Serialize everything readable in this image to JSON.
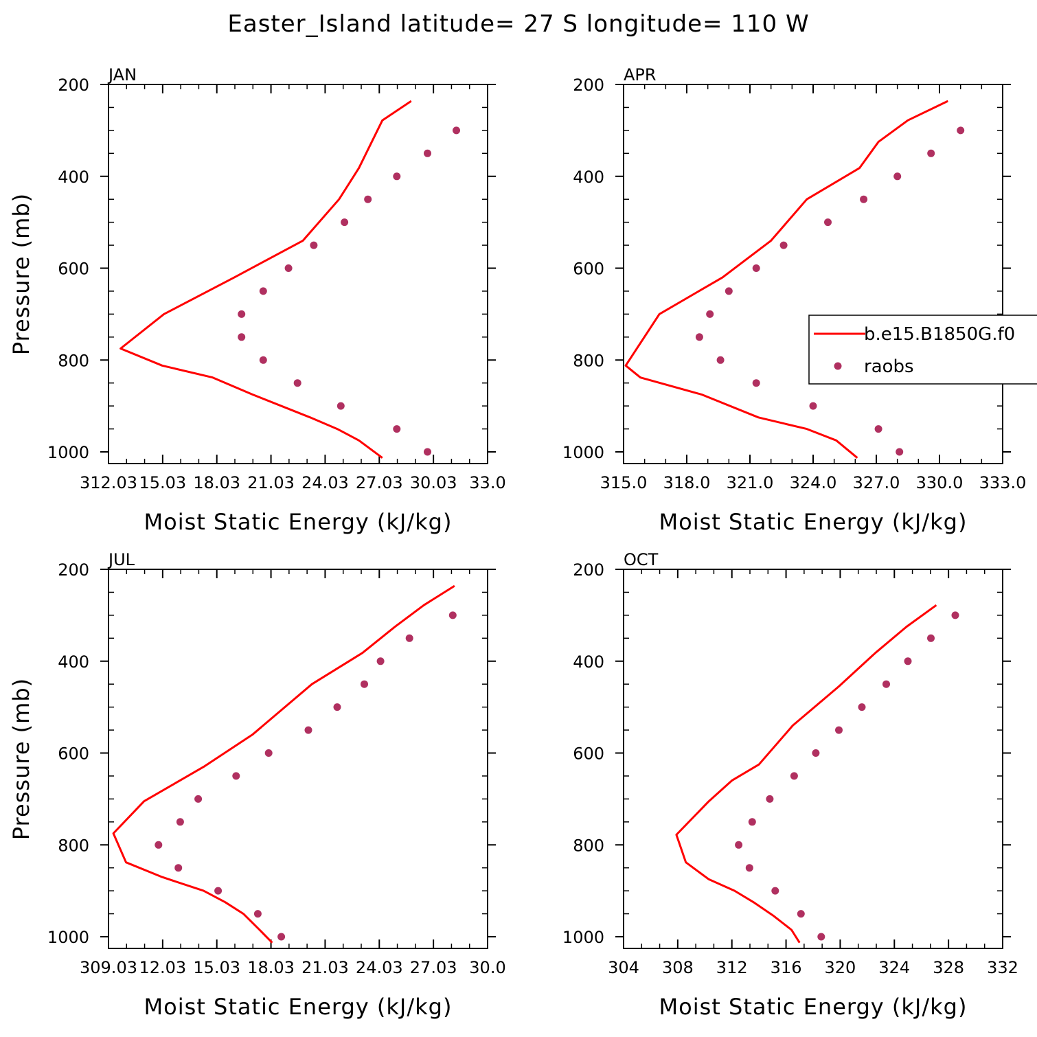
{
  "title": "Easter_Island  latitude= 27 S longitude= 110 W",
  "colors": {
    "model": "#ff0000",
    "obs": "#b03060"
  },
  "legend": {
    "model_label": "b.e15.B1850G.f0",
    "obs_label": "raobs"
  },
  "chart_data": [
    {
      "type": "line",
      "panel": "JAN",
      "xlabel": "Moist Static Energy (kJ/kg)",
      "ylabel": "Pressure (mb)",
      "xlim": [
        312.03,
        333.03
      ],
      "ylim": [
        1000,
        200
      ],
      "xticks": [
        312.03,
        315.03,
        318.03,
        321.03,
        324.03,
        327.03,
        330.03,
        333.03
      ],
      "xtick_labels": [
        "312.03",
        "15.03",
        "18.03",
        "21.03",
        "24.03",
        "27.03",
        "30.03",
        "33.0"
      ],
      "yticks": [
        200,
        400,
        600,
        800,
        1000
      ],
      "series": [
        {
          "name": "b.e15.B1850G.f0",
          "kind": "line",
          "x": [
            327.2,
            325.9,
            324.7,
            323.2,
            320.0,
            317.8,
            315.0,
            312.7,
            315.1,
            319.0,
            322.8,
            324.8,
            325.9,
            327.2,
            328.8
          ],
          "y": [
            1013,
            975,
            950,
            925,
            875,
            838,
            812,
            775,
            700,
            620,
            540,
            450,
            382,
            278,
            236
          ]
        },
        {
          "name": "raobs",
          "kind": "scatter",
          "x": [
            329.7,
            328.0,
            324.9,
            322.5,
            320.6,
            319.4,
            319.4,
            320.6,
            322.0,
            323.4,
            325.1,
            326.4,
            328.0,
            329.7,
            331.3
          ],
          "y": [
            1000,
            950,
            900,
            850,
            800,
            750,
            700,
            650,
            600,
            550,
            500,
            450,
            400,
            350,
            300
          ]
        }
      ]
    },
    {
      "type": "line",
      "panel": "APR",
      "xlabel": "Moist Static Energy (kJ/kg)",
      "ylabel": "",
      "xlim": [
        315.0,
        333.0
      ],
      "ylim": [
        1000,
        200
      ],
      "xticks": [
        315,
        318,
        321,
        324,
        327,
        330,
        333
      ],
      "xtick_labels": [
        "315.0",
        "318.0",
        "321.0",
        "324.0",
        "327.0",
        "330.0",
        "333.0"
      ],
      "yticks": [
        200,
        400,
        600,
        800,
        1000
      ],
      "series": [
        {
          "name": "b.e15.B1850G.f0",
          "kind": "line",
          "x": [
            326.1,
            325.1,
            323.7,
            321.4,
            318.7,
            315.8,
            315.1,
            316.7,
            319.7,
            322.0,
            323.7,
            326.2,
            327.1,
            328.5,
            330.4
          ],
          "y": [
            1013,
            975,
            950,
            925,
            875,
            838,
            812,
            700,
            620,
            540,
            450,
            382,
            325,
            278,
            236
          ]
        },
        {
          "name": "raobs",
          "kind": "scatter",
          "x": [
            328.1,
            327.1,
            324.0,
            321.3,
            319.6,
            318.6,
            319.1,
            320.0,
            321.3,
            322.6,
            324.7,
            326.4,
            328.0,
            329.6,
            331.0
          ],
          "y": [
            1000,
            950,
            900,
            850,
            800,
            750,
            700,
            650,
            600,
            550,
            500,
            450,
            400,
            350,
            300
          ]
        }
      ]
    },
    {
      "type": "line",
      "panel": "JUL",
      "xlabel": "Moist Static Energy (kJ/kg)",
      "ylabel": "Pressure (mb)",
      "xlim": [
        309.03,
        330.03
      ],
      "ylim": [
        1000,
        200
      ],
      "xticks": [
        309.03,
        312.03,
        315.03,
        318.03,
        321.03,
        324.03,
        327.03,
        330.03
      ],
      "xtick_labels": [
        "309.03",
        "12.03",
        "15.03",
        "18.03",
        "21.03",
        "24.03",
        "27.03",
        "30.0"
      ],
      "yticks": [
        200,
        400,
        600,
        800,
        1000
      ],
      "series": [
        {
          "name": "b.e15.B1850G.f0",
          "kind": "line",
          "x": [
            318.1,
            317.4,
            316.5,
            315.5,
            314.3,
            312.0,
            310.0,
            309.3,
            311.0,
            314.3,
            317.0,
            320.3,
            323.1,
            324.9,
            326.5,
            328.2
          ],
          "y": [
            1013,
            985,
            950,
            925,
            900,
            870,
            838,
            775,
            705,
            630,
            560,
            450,
            382,
            325,
            278,
            236
          ]
        },
        {
          "name": "raobs",
          "kind": "scatter",
          "x": [
            318.6,
            317.3,
            315.1,
            312.9,
            311.8,
            313.0,
            314.0,
            316.1,
            317.9,
            320.1,
            321.7,
            323.2,
            324.1,
            325.7,
            328.1
          ],
          "y": [
            1000,
            950,
            900,
            850,
            800,
            750,
            700,
            650,
            600,
            550,
            500,
            450,
            400,
            350,
            300
          ]
        }
      ]
    },
    {
      "type": "line",
      "panel": "OCT",
      "xlabel": "Moist Static Energy (kJ/kg)",
      "ylabel": "",
      "xlim": [
        304,
        332
      ],
      "ylim": [
        1000,
        200
      ],
      "xticks": [
        304,
        308,
        312,
        316,
        320,
        324,
        328,
        332
      ],
      "xtick_labels": [
        "304",
        "308",
        "312",
        "316",
        "320",
        "324",
        "328",
        "332"
      ],
      "yticks": [
        200,
        400,
        600,
        800,
        1000
      ],
      "series": [
        {
          "name": "b.e15.B1850G.f0",
          "kind": "line",
          "x": [
            317.0,
            316.4,
            315.1,
            313.6,
            312.2,
            310.3,
            308.6,
            307.9,
            310.3,
            312.0,
            314.0,
            316.5,
            319.9,
            322.6,
            324.9,
            327.1
          ],
          "y": [
            1013,
            985,
            955,
            925,
            900,
            875,
            838,
            778,
            705,
            660,
            625,
            540,
            455,
            382,
            325,
            278
          ]
        },
        {
          "name": "raobs",
          "kind": "scatter",
          "x": [
            318.6,
            317.1,
            315.2,
            313.3,
            312.5,
            313.5,
            314.8,
            316.6,
            318.2,
            319.9,
            321.6,
            323.4,
            325.0,
            326.7,
            328.5
          ],
          "y": [
            1000,
            950,
            900,
            850,
            800,
            750,
            700,
            650,
            600,
            550,
            500,
            450,
            400,
            350,
            300
          ]
        }
      ]
    }
  ]
}
